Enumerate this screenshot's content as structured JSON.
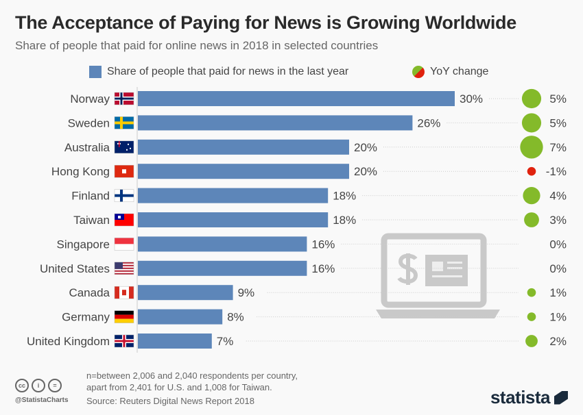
{
  "title": "The Acceptance of Paying for News is Growing Worldwide",
  "subtitle": "Share of people that paid for online news in 2018 in selected countries",
  "legend": {
    "bars": "Share of people that paid for news in the last year",
    "bubbles": "YoY change"
  },
  "colors": {
    "bar": "#5d86b9",
    "positive": "#84ba2a",
    "negative": "#e0220e"
  },
  "chart_data": {
    "type": "bar",
    "orientation": "horizontal",
    "categories": [
      "Norway",
      "Sweden",
      "Australia",
      "Hong Kong",
      "Finland",
      "Taiwan",
      "Singapore",
      "United States",
      "Canada",
      "Germany",
      "United Kingdom"
    ],
    "series": [
      {
        "name": "Share of people that paid for news in the last year",
        "values": [
          30,
          26,
          20,
          20,
          18,
          18,
          16,
          16,
          9,
          8,
          7
        ],
        "labels": [
          "30%",
          "26%",
          "20%",
          "20%",
          "18%",
          "18%",
          "16%",
          "16%",
          "9%",
          "8%",
          "7%"
        ]
      },
      {
        "name": "YoY change",
        "type": "bubble",
        "values": [
          5,
          5,
          7,
          -1,
          4,
          3,
          0,
          0,
          1,
          1,
          2
        ],
        "labels": [
          "5%",
          "5%",
          "7%",
          "-1%",
          "4%",
          "3%",
          "0%",
          "0%",
          "1%",
          "1%",
          "2%"
        ]
      }
    ],
    "unit": "%"
  },
  "footer": {
    "note1": "n=between 2,006 and 2,040 respondents per country,",
    "note2": "apart from 2,401 for U.S. and 1,008 for Taiwan.",
    "source": "Source: Reuters Digital News Report 2018",
    "handle": "@StatistaCharts",
    "brand": "statista",
    "cc": [
      "cc",
      "i",
      "="
    ]
  }
}
